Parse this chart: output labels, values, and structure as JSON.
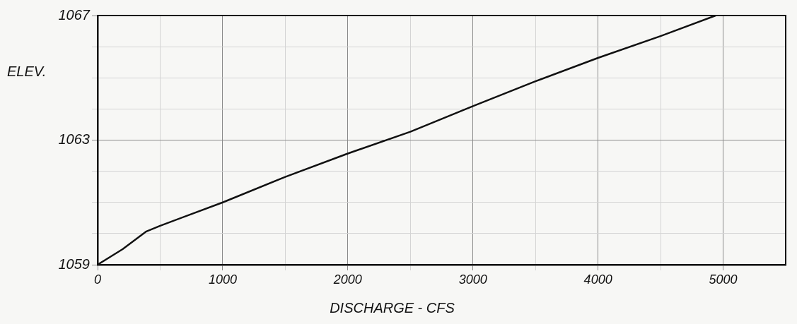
{
  "chart_data": {
    "type": "line",
    "xlabel": "DISCHARGE - CFS",
    "ylabel": "ELEV.",
    "x": [
      0,
      100,
      200,
      390,
      500,
      1000,
      1500,
      2000,
      2500,
      3000,
      3500,
      4000,
      4500,
      4940
    ],
    "series": [
      {
        "color": "#111111",
        "values": [
          1059,
          1059.25,
          1059.5,
          1060.07,
          1060.25,
          1061.0,
          1061.82,
          1062.57,
          1063.27,
          1064.09,
          1064.89,
          1065.64,
          1066.34,
          1067.0
        ]
      }
    ],
    "xlim": [
      0,
      5500
    ],
    "xticks": [
      0,
      {
        "value": 500,
        "label": null
      },
      1000,
      {
        "value": 1500,
        "label": null
      },
      2000,
      {
        "value": 2500,
        "label": null
      },
      3000,
      {
        "value": 3500,
        "label": null
      },
      4000,
      {
        "value": 4500,
        "label": null
      },
      5000
    ],
    "ylim": [
      1059,
      1067
    ],
    "yticks": [
      1059,
      {
        "value": 1060,
        "label": null
      },
      {
        "value": 1061,
        "label": null
      },
      {
        "value": 1062,
        "label": null
      },
      1063,
      {
        "value": 1064,
        "label": null
      },
      {
        "value": 1065,
        "label": null
      },
      {
        "value": 1066,
        "label": null
      },
      1067
    ],
    "grid": true,
    "marker": "none",
    "line_style": "solid",
    "legend": false
  }
}
